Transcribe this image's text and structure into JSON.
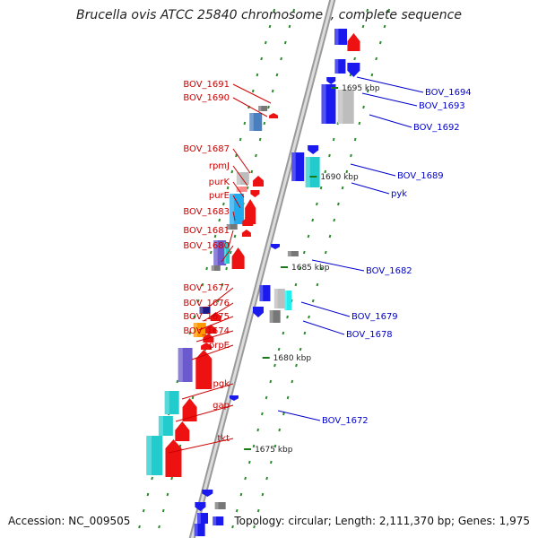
{
  "title": "Brucella ovis ATCC 25840 chromosome I, complete sequence",
  "footer": {
    "accession": "Accession: NC_009505",
    "summary": "Topology: circular; Length: 2,111,370 bp; Genes: 1,975"
  },
  "colors": {
    "forward_label": "#cc0000",
    "reverse_label": "#0000cc",
    "kbp_tick": "#1a7a1a",
    "axis": "#8a8a8a"
  },
  "kbp_labels": [
    "1695 kbp",
    "1690 kbp",
    "1685 kbp",
    "1680 kbp",
    "1675 kbp"
  ],
  "left_genes": [
    "BOV_1691",
    "BOV_1690",
    "BOV_1687",
    "rpmJ",
    "purK",
    "purE",
    "BOV_1683",
    "BOV_1681",
    "BOV_1680",
    "BOV_1677",
    "BOV_1676",
    "BOV_1675",
    "BOV_1674",
    "prpE",
    "pgk",
    "gap",
    "tkt"
  ],
  "right_genes": [
    "BOV_1694",
    "BOV_1693",
    "BOV_1692",
    "BOV_1689",
    "pyk",
    "BOV_1682",
    "BOV_1679",
    "BOV_1678",
    "BOV_1672"
  ]
}
